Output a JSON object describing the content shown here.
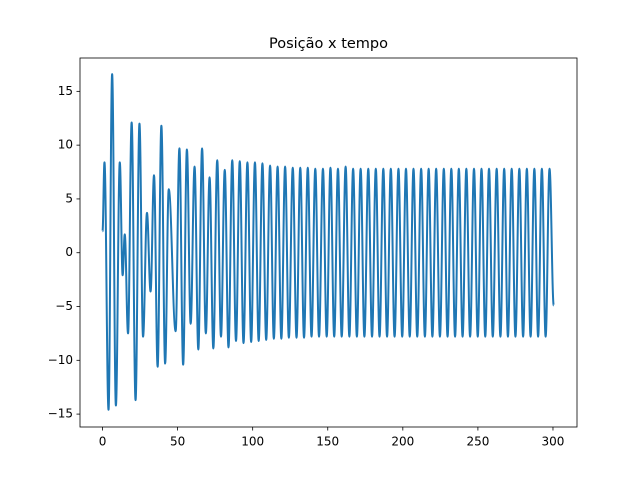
{
  "chart_data": {
    "type": "line",
    "title": "Posição x tempo",
    "x": [
      0,
      1.3,
      4,
      6.4,
      8.9,
      11.5,
      13.4,
      14.8,
      17,
      19.4,
      22,
      24.6,
      27,
      29.6,
      32,
      34.3,
      36.7,
      39.2,
      41.7,
      44.1,
      48.7,
      51.2,
      53.7,
      56.2,
      58.7,
      61.3,
      63.8,
      66.3,
      68.8,
      71.3,
      73.8,
      76.4,
      78.9,
      81.4,
      83.9,
      86.4,
      88.9,
      91.4,
      93.9,
      96.5,
      99.0,
      101.5,
      104.0,
      106.5,
      109.0,
      111.6,
      114.1,
      116.6,
      119.1,
      121.6,
      124.1,
      126.7,
      129.2,
      131.7,
      134.2,
      136.7,
      139.2,
      141.7,
      144.2,
      146.8,
      149.3,
      151.8,
      154.3,
      156.8,
      159.3,
      161.9,
      164.4,
      166.9,
      169.4,
      171.9,
      174.4,
      177.0,
      179.5,
      182.0,
      184.5,
      187.0,
      189.5,
      192.0,
      194.5,
      197.1,
      199.6,
      202.1,
      204.6,
      207.1,
      209.6,
      212.2,
      214.7,
      217.2,
      219.7,
      222.2,
      224.7,
      227.3,
      229.8,
      232.3,
      234.8,
      237.3,
      239.8,
      242.3,
      244.8,
      247.4,
      249.9,
      252.4,
      254.9,
      257.4,
      259.9,
      262.5,
      265.0,
      267.5,
      270.0,
      272.5,
      275.0,
      277.6,
      280.1,
      282.6,
      285.1,
      287.6,
      290.1,
      292.6,
      295.1,
      297.7,
      300.5
    ],
    "values": [
      2,
      8.4,
      -14.6,
      16.6,
      -14.2,
      8.4,
      -2.1,
      1.7,
      -7.5,
      12.1,
      -13.7,
      12.0,
      -7.8,
      3.7,
      -3.6,
      7.2,
      -10.6,
      11.8,
      -10.3,
      5.9,
      -7.3,
      9.7,
      -10.4,
      9.6,
      -6.6,
      8.0,
      -9.0,
      9.7,
      -7.5,
      7.0,
      -8.9,
      8.6,
      -7.8,
      7.7,
      -8.8,
      8.6,
      -8.2,
      8.5,
      -8.4,
      8.4,
      -8.3,
      8.4,
      -8.2,
      8.3,
      -8.1,
      8.1,
      -8.0,
      8.0,
      -8.0,
      8.0,
      -7.9,
      7.9,
      -7.9,
      7.9,
      -7.9,
      7.9,
      -7.8,
      7.8,
      -7.8,
      7.8,
      -7.8,
      7.9,
      -7.8,
      7.8,
      -7.8,
      8.0,
      -7.8,
      7.8,
      -7.8,
      7.8,
      -7.8,
      7.8,
      -7.8,
      7.8,
      -7.8,
      7.8,
      -7.8,
      7.8,
      -7.8,
      7.8,
      -7.8,
      7.8,
      -7.8,
      7.8,
      -7.8,
      7.8,
      -7.8,
      7.8,
      -7.8,
      7.8,
      -7.8,
      7.8,
      -7.8,
      7.8,
      -7.8,
      7.8,
      -7.8,
      7.8,
      -7.8,
      7.8,
      -7.8,
      7.8,
      -7.8,
      7.8,
      -7.8,
      7.8,
      -7.8,
      7.8,
      -7.8,
      7.8,
      -7.8,
      7.8,
      -7.8,
      7.8,
      -7.8,
      7.8,
      -7.8,
      7.8,
      -7.8,
      7.8,
      -4.9
    ],
    "color": "#1f77b4",
    "xlim": [
      -15,
      316
    ],
    "xticks": [
      0,
      50,
      100,
      150,
      200,
      250,
      300
    ],
    "ylim": [
      -16.2,
      18.1
    ],
    "yticks": [
      {
        "value": -15,
        "label": "−15"
      },
      {
        "value": -10,
        "label": "−10"
      },
      {
        "value": -5,
        "label": "−5"
      },
      0,
      5,
      10,
      15
    ],
    "grid": false
  }
}
